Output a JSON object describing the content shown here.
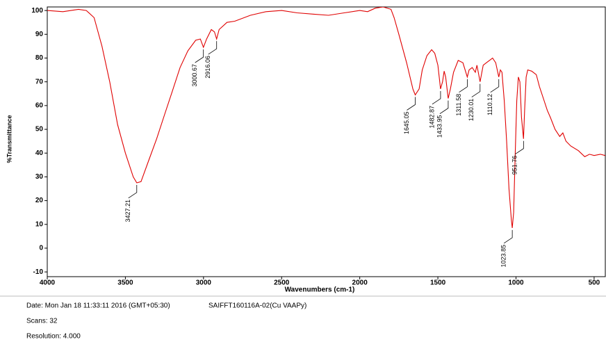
{
  "chart_data": {
    "type": "line",
    "y_label": "%Transmittance",
    "x_label": "Wavenumbers (cm-1)",
    "xlim": [
      4000,
      424
    ],
    "ylim": [
      -12,
      101.5
    ],
    "xticks": [
      4000,
      3500,
      3000,
      2500,
      2000,
      1500,
      1000,
      500
    ],
    "yticks": [
      -10,
      0,
      10,
      20,
      30,
      40,
      50,
      60,
      70,
      80,
      90,
      100
    ],
    "color": "#e00000",
    "x": [
      4000,
      3900,
      3800,
      3750,
      3700,
      3650,
      3600,
      3550,
      3500,
      3450,
      3427.21,
      3400,
      3350,
      3300,
      3250,
      3200,
      3150,
      3100,
      3050,
      3020,
      3000.67,
      2980,
      2950,
      2930,
      2916.06,
      2900,
      2850,
      2800,
      2700,
      2600,
      2500,
      2400,
      2300,
      2200,
      2100,
      2000,
      1950,
      1900,
      1850,
      1800,
      1780,
      1750,
      1700,
      1660,
      1645.05,
      1620,
      1600,
      1570,
      1540,
      1520,
      1500,
      1482.87,
      1470,
      1460,
      1450,
      1433.95,
      1420,
      1400,
      1370,
      1340,
      1311.58,
      1300,
      1280,
      1260,
      1250,
      1230.01,
      1210,
      1190,
      1170,
      1150,
      1130,
      1110.12,
      1100,
      1090,
      1075,
      1060,
      1045,
      1030,
      1023.85,
      1015,
      1005,
      995,
      985,
      975,
      965,
      951.76,
      945,
      935,
      925,
      900,
      870,
      850,
      820,
      800,
      780,
      750,
      720,
      700,
      680,
      650,
      600,
      560,
      530,
      500,
      460,
      430
    ],
    "values": [
      100,
      99.5,
      100.5,
      100,
      97,
      85,
      70,
      52,
      40,
      30,
      27.5,
      28,
      37,
      46,
      56,
      66,
      76,
      83,
      87.5,
      88,
      84.5,
      88,
      92,
      91,
      88,
      92,
      95,
      95.5,
      98,
      99.5,
      100,
      99,
      98.5,
      98,
      99,
      100,
      99.5,
      101,
      101.5,
      100.5,
      97,
      90,
      78,
      67,
      64.5,
      67,
      75,
      81,
      83.5,
      82,
      77,
      67,
      70,
      74.5,
      72,
      63,
      67,
      74,
      79,
      78,
      72,
      75,
      76,
      74,
      77,
      70,
      77,
      78,
      79,
      80,
      78,
      72,
      75,
      74,
      62,
      45,
      25,
      12,
      8.5,
      15,
      40,
      62,
      72,
      70,
      55,
      46,
      58,
      72,
      75,
      74.5,
      73,
      68,
      62,
      58,
      55,
      50,
      47,
      48.5,
      45,
      43,
      41,
      38.5,
      39.5,
      39,
      39.5,
      39
    ],
    "peaks": [
      3427.21,
      3000.67,
      2916.06,
      1645.05,
      1482.87,
      1433.95,
      1311.58,
      1230.01,
      1110.12,
      1023.85,
      951.76
    ]
  },
  "footer": {
    "date": "Date: Mon Jan 18 11:33:11 2016 (GMT+05:30)",
    "sample": "SAIFFT160116A-02(Cu VAAPy)",
    "scans": "Scans: 32",
    "resolution": "Resolution:  4.000"
  }
}
